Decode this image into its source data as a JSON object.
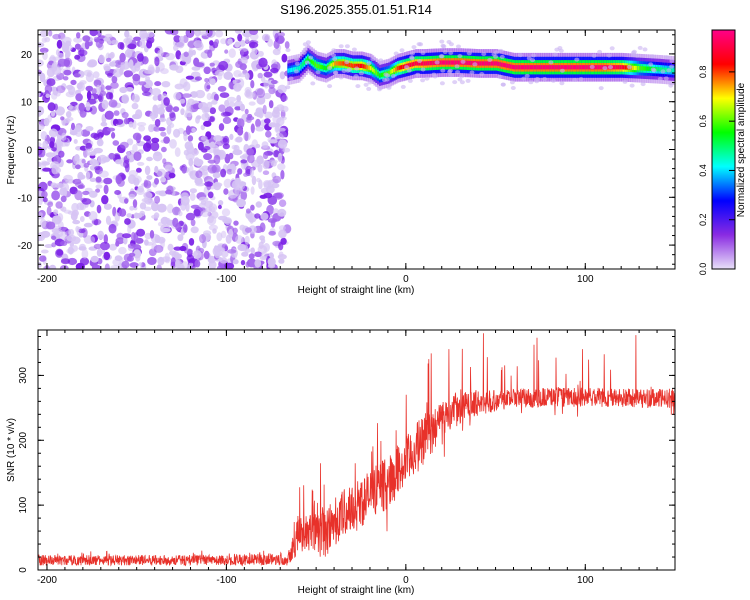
{
  "figure": {
    "title": "S196.2025.355.01.51.R14"
  },
  "chart_data": [
    {
      "type": "heatmap",
      "title": "S196.2025.355.01.51.R14",
      "xlabel": "Height of straight line (km)",
      "ylabel": "Frequency (Hz)",
      "xlim": [
        -205,
        150
      ],
      "ylim": [
        -25,
        25
      ],
      "x_ticks": [
        -200,
        -100,
        0,
        100
      ],
      "y_ticks": [
        -20,
        -10,
        0,
        10,
        20
      ],
      "colorbar": {
        "label": "Normalized spectral amplitude",
        "range": [
          0,
          0.97
        ],
        "ticks": [
          0.0,
          0.2,
          0.4,
          0.6,
          0.8
        ],
        "colormap": [
          "#e8e0f8",
          "#8a2be2",
          "#0000ff",
          "#00ffff",
          "#00ff00",
          "#ffff00",
          "#ff0000",
          "#ff0088"
        ]
      },
      "noise_region": {
        "x_range": [
          -205,
          -66
        ],
        "amplitude_range": [
          0.05,
          0.2
        ]
      },
      "signal_track": {
        "x": [
          -66,
          -60,
          -55,
          -50,
          -45,
          -40,
          -35,
          -30,
          -25,
          -20,
          -15,
          -10,
          -5,
          0,
          5,
          10,
          20,
          30,
          40,
          50,
          60,
          70,
          80,
          90,
          100,
          110,
          120,
          130,
          140,
          150
        ],
        "frequency": [
          16.5,
          17,
          19,
          17.5,
          17,
          18,
          18,
          17.5,
          17.5,
          17,
          15.5,
          16,
          17,
          17.5,
          18,
          18,
          18.2,
          18.2,
          18,
          18,
          17.2,
          17.2,
          17.2,
          17.2,
          17.2,
          17.2,
          17.2,
          17,
          16.8,
          16.5
        ],
        "peak_amplitude": [
          0.4,
          0.45,
          0.55,
          0.6,
          0.55,
          0.75,
          0.8,
          0.8,
          0.85,
          0.7,
          0.55,
          0.6,
          0.8,
          0.9,
          0.9,
          0.92,
          0.95,
          0.95,
          0.95,
          0.95,
          0.95,
          0.95,
          0.95,
          0.95,
          0.95,
          0.95,
          0.9,
          0.6,
          0.5,
          0.45
        ]
      }
    },
    {
      "type": "line",
      "xlabel": "Height of straight line (km)",
      "ylabel": "SNR (10 * v/v)",
      "xlim": [
        -205,
        150
      ],
      "ylim": [
        0,
        370
      ],
      "x_ticks": [
        -200,
        -100,
        0,
        100
      ],
      "y_ticks": [
        0,
        100,
        200,
        300
      ],
      "series_color": "#e8312a",
      "envelope": {
        "x": [
          -205,
          -150,
          -100,
          -66,
          -60,
          -55,
          -50,
          -45,
          -40,
          -35,
          -30,
          -25,
          -20,
          -15,
          -10,
          -5,
          0,
          5,
          10,
          15,
          20,
          30,
          40,
          50,
          60,
          70,
          80,
          90,
          100,
          110,
          120,
          130,
          140,
          150
        ],
        "mean": [
          15,
          15,
          15,
          17,
          55,
          60,
          70,
          55,
          75,
          85,
          95,
          105,
          115,
          125,
          135,
          150,
          165,
          185,
          200,
          215,
          235,
          250,
          258,
          262,
          265,
          265,
          267,
          266,
          266,
          266,
          265,
          265,
          264,
          265
        ],
        "noise": [
          8,
          8,
          8,
          10,
          30,
          30,
          45,
          40,
          40,
          40,
          40,
          40,
          40,
          40,
          40,
          40,
          40,
          40,
          40,
          35,
          30,
          25,
          20,
          18,
          15,
          15,
          15,
          15,
          15,
          15,
          15,
          15,
          15,
          15
        ],
        "spike_to": [
          30,
          30,
          30,
          35,
          130,
          140,
          185,
          150,
          170,
          190,
          200,
          210,
          220,
          240,
          270,
          290,
          300,
          320,
          340,
          350,
          355,
          360,
          365,
          368,
          368,
          368,
          368,
          368,
          368,
          368,
          368,
          368,
          360,
          350
        ]
      }
    }
  ]
}
